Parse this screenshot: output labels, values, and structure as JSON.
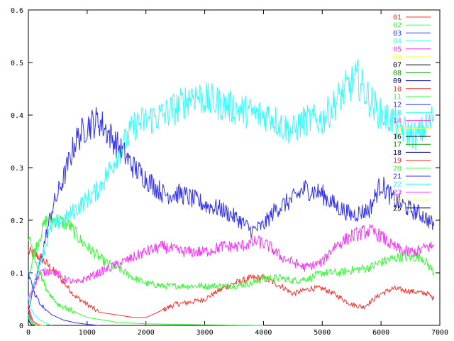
{
  "chart_data": {
    "type": "line",
    "title": "",
    "xlabel": "",
    "ylabel": "",
    "xlim": [
      0,
      7000
    ],
    "ylim": [
      0,
      0.6
    ],
    "x_ticks": [
      0,
      1000,
      2000,
      3000,
      4000,
      5000,
      6000,
      7000
    ],
    "y_ticks": [
      0,
      0.1,
      0.2,
      0.3,
      0.4,
      0.5,
      0.6
    ],
    "x_tick_labels": [
      "0",
      "1000",
      "2000",
      "3000",
      "4000",
      "5000",
      "6000",
      "7000"
    ],
    "y_tick_labels": [
      "0",
      "0.1",
      "0.2",
      "0.3",
      "0.4",
      "0.5",
      "0.6"
    ],
    "grid": false,
    "legend_position": "top-right",
    "series": [
      {
        "name": "01",
        "color": "#ff3030",
        "x": [
          0,
          200,
          500,
          800,
          1000,
          1200,
          1500,
          1800,
          2000,
          2300,
          2500,
          2800,
          3000,
          3300,
          3500,
          3800,
          4000,
          4300,
          4500,
          4800,
          5000,
          5200,
          5500,
          5700,
          6000,
          6200,
          6500,
          6800,
          6900
        ],
        "y": [
          0.14,
          0.13,
          0.095,
          0.055,
          0.04,
          0.025,
          0.02,
          0.015,
          0.015,
          0.03,
          0.04,
          0.045,
          0.05,
          0.07,
          0.08,
          0.09,
          0.09,
          0.075,
          0.06,
          0.07,
          0.07,
          0.06,
          0.04,
          0.035,
          0.06,
          0.07,
          0.065,
          0.06,
          0.05
        ]
      },
      {
        "name": "02",
        "color": "#30ff30",
        "x": [
          0,
          100,
          300,
          500,
          700,
          900,
          1100,
          1300,
          1500,
          1800,
          2000,
          2300,
          2500,
          2800,
          3000,
          3300,
          3500,
          3800,
          4000,
          4300,
          4500,
          4800,
          5000,
          5300,
          5500,
          5800,
          6000,
          6300,
          6500,
          6700,
          6900
        ],
        "y": [
          0.09,
          0.14,
          0.2,
          0.2,
          0.19,
          0.16,
          0.14,
          0.12,
          0.11,
          0.09,
          0.08,
          0.075,
          0.075,
          0.075,
          0.075,
          0.075,
          0.075,
          0.08,
          0.09,
          0.09,
          0.085,
          0.09,
          0.1,
          0.1,
          0.105,
          0.11,
          0.12,
          0.13,
          0.13,
          0.13,
          0.1
        ]
      },
      {
        "name": "03",
        "color": "#3030ff",
        "x": [
          0,
          200,
          400,
          600,
          800,
          1000,
          1200,
          1400,
          1600,
          1800,
          2000,
          2300,
          2600,
          3000,
          3300,
          3600,
          3800,
          4000,
          4200,
          4500,
          4700,
          5000,
          5200,
          5500,
          5800,
          6000,
          6200,
          6500,
          6700,
          6900
        ],
        "y": [
          0.03,
          0.12,
          0.22,
          0.28,
          0.35,
          0.38,
          0.39,
          0.36,
          0.33,
          0.3,
          0.28,
          0.25,
          0.25,
          0.23,
          0.22,
          0.2,
          0.18,
          0.19,
          0.22,
          0.24,
          0.26,
          0.25,
          0.23,
          0.21,
          0.22,
          0.27,
          0.24,
          0.22,
          0.21,
          0.19
        ]
      },
      {
        "name": "04",
        "color": "#30ffff",
        "x": [
          0,
          200,
          400,
          600,
          800,
          1000,
          1200,
          1400,
          1600,
          1800,
          2000,
          2300,
          2600,
          2800,
          3000,
          3300,
          3600,
          3900,
          4100,
          4300,
          4500,
          4700,
          5000,
          5200,
          5400,
          5600,
          5800,
          6000,
          6200,
          6400,
          6600,
          6800,
          6900
        ],
        "y": [
          0.05,
          0.12,
          0.19,
          0.2,
          0.22,
          0.24,
          0.26,
          0.3,
          0.34,
          0.38,
          0.39,
          0.4,
          0.42,
          0.44,
          0.43,
          0.42,
          0.41,
          0.4,
          0.4,
          0.38,
          0.37,
          0.39,
          0.39,
          0.42,
          0.45,
          0.47,
          0.43,
          0.4,
          0.39,
          0.37,
          0.36,
          0.38,
          0.4
        ]
      },
      {
        "name": "05",
        "color": "#ff30ff",
        "x": [
          0,
          200,
          400,
          600,
          800,
          1000,
          1200,
          1400,
          1600,
          1800,
          2000,
          2300,
          2600,
          3000,
          3300,
          3600,
          3900,
          4100,
          4300,
          4500,
          4700,
          5000,
          5200,
          5500,
          5800,
          6000,
          6200,
          6400,
          6600,
          6800,
          6900
        ],
        "y": [
          0.05,
          0.1,
          0.105,
          0.09,
          0.08,
          0.09,
          0.1,
          0.11,
          0.12,
          0.13,
          0.14,
          0.15,
          0.14,
          0.14,
          0.15,
          0.15,
          0.16,
          0.15,
          0.13,
          0.12,
          0.11,
          0.12,
          0.15,
          0.17,
          0.18,
          0.17,
          0.15,
          0.14,
          0.14,
          0.15,
          0.15
        ]
      },
      {
        "name": "06",
        "color": "#ffff30",
        "x": [
          0,
          30,
          60,
          120,
          200,
          300
        ],
        "y": [
          0.03,
          0.02,
          0.01,
          0.005,
          0.002,
          0
        ]
      },
      {
        "name": "07",
        "color": "#000000",
        "x": [
          0,
          20,
          50,
          100,
          150
        ],
        "y": [
          0.04,
          0.02,
          0.008,
          0.002,
          0
        ]
      },
      {
        "name": "08",
        "color": "#00a000",
        "x": [
          0,
          30,
          60,
          100,
          160
        ],
        "y": [
          0.03,
          0.015,
          0.006,
          0.002,
          0
        ]
      },
      {
        "name": "09",
        "color": "#000080",
        "x": [
          0,
          30,
          60,
          100,
          160
        ],
        "y": [
          0.02,
          0.01,
          0.004,
          0.001,
          0
        ]
      },
      {
        "name": "10",
        "color": "#ff3030",
        "x": [
          0,
          40,
          80,
          140,
          220
        ],
        "y": [
          0.04,
          0.02,
          0.008,
          0.003,
          0
        ]
      },
      {
        "name": "11",
        "color": "#30ff30",
        "x": [
          0,
          100,
          300,
          500,
          800,
          1000,
          1500,
          2000,
          2500,
          3000,
          3500,
          4000
        ],
        "y": [
          0.17,
          0.13,
          0.07,
          0.04,
          0.025,
          0.015,
          0.006,
          0.003,
          0.002,
          0.001,
          0.0005,
          0
        ]
      },
      {
        "name": "12",
        "color": "#3030ff",
        "x": [
          0,
          100,
          200,
          300,
          400,
          600,
          800,
          1000,
          1200
        ],
        "y": [
          0.1,
          0.06,
          0.04,
          0.03,
          0.02,
          0.01,
          0.005,
          0.002,
          0
        ]
      },
      {
        "name": "13",
        "color": "#30ffff",
        "x": [
          0,
          50,
          100,
          200,
          300,
          400
        ],
        "y": [
          0.05,
          0.03,
          0.02,
          0.01,
          0.004,
          0
        ]
      },
      {
        "name": "14",
        "color": "#ff30ff",
        "x": [
          0,
          40,
          80,
          150,
          250
        ],
        "y": [
          0.03,
          0.015,
          0.007,
          0.002,
          0
        ]
      },
      {
        "name": "15",
        "color": "#ffff30",
        "x": [
          0,
          40,
          80,
          150,
          250
        ],
        "y": [
          0.02,
          0.01,
          0.004,
          0.001,
          0
        ]
      },
      {
        "name": "16",
        "color": "#000000",
        "x": [
          0,
          30,
          60,
          120
        ],
        "y": [
          0.015,
          0.006,
          0.002,
          0
        ]
      },
      {
        "name": "17",
        "color": "#00a000",
        "x": [
          0,
          30,
          60,
          120
        ],
        "y": [
          0.015,
          0.006,
          0.002,
          0
        ]
      },
      {
        "name": "18",
        "color": "#000080",
        "x": [
          0,
          30,
          60,
          120
        ],
        "y": [
          0.012,
          0.005,
          0.002,
          0
        ]
      },
      {
        "name": "19",
        "color": "#ff3030",
        "x": [
          0,
          40,
          80,
          150
        ],
        "y": [
          0.02,
          0.008,
          0.003,
          0
        ]
      },
      {
        "name": "20",
        "color": "#30ff30",
        "x": [
          0,
          40,
          80,
          150
        ],
        "y": [
          0.02,
          0.008,
          0.003,
          0
        ]
      },
      {
        "name": "21",
        "color": "#3030ff",
        "x": [
          0,
          40,
          80,
          150
        ],
        "y": [
          0.015,
          0.006,
          0.002,
          0
        ]
      },
      {
        "name": "22",
        "color": "#30ffff",
        "x": [
          0,
          40,
          80,
          150
        ],
        "y": [
          0.015,
          0.006,
          0.002,
          0
        ]
      },
      {
        "name": "23",
        "color": "#ff30ff",
        "x": [
          0,
          40,
          80,
          150
        ],
        "y": [
          0.01,
          0.004,
          0.001,
          0
        ]
      },
      {
        "name": "24",
        "color": "#ffff30",
        "x": [
          0,
          40,
          80,
          150
        ],
        "y": [
          0.01,
          0.004,
          0.001,
          0
        ]
      },
      {
        "name": "25",
        "color": "#000000",
        "x": [
          0,
          30,
          60,
          120
        ],
        "y": [
          0.01,
          0.004,
          0.001,
          0
        ]
      }
    ]
  }
}
